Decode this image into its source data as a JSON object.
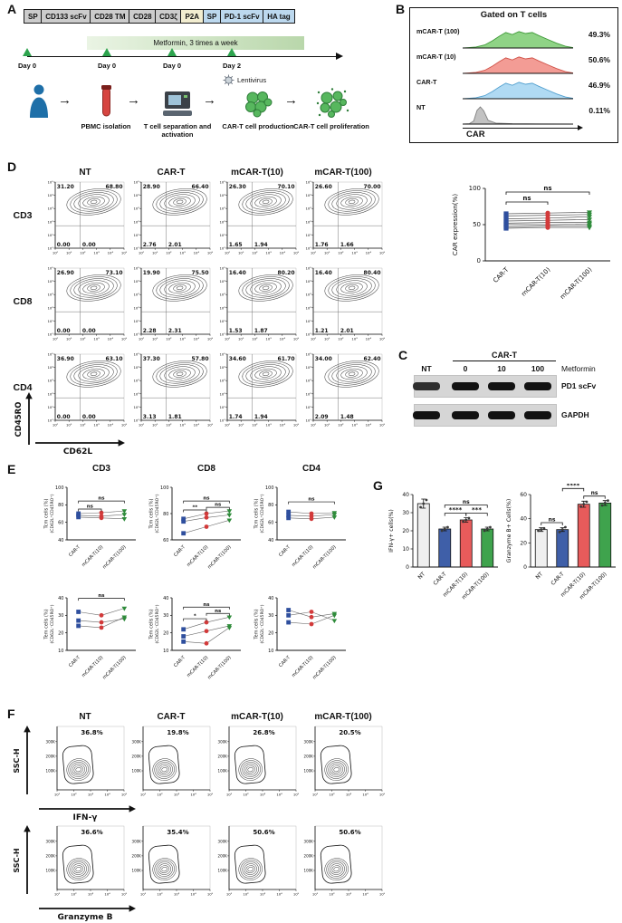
{
  "icons": {
    "flow_arrow": "→"
  },
  "panelA": {
    "label": "A",
    "construct": [
      {
        "text": "SP",
        "bg": "#cccccc"
      },
      {
        "text": "CD133 scFv",
        "bg": "#cccccc"
      },
      {
        "text": "CD28 TM",
        "bg": "#cccccc"
      },
      {
        "text": "CD28",
        "bg": "#cccccc"
      },
      {
        "text": "CD3ζ",
        "bg": "#cccccc"
      },
      {
        "text": "P2A",
        "bg": "#f2edd0"
      },
      {
        "text": "SP",
        "bg": "#bcd8ee"
      },
      {
        "text": "PD-1 scFv",
        "bg": "#bcd8ee"
      },
      {
        "text": "HA tag",
        "bg": "#bcd8ee"
      }
    ],
    "metformin_banner": "Metformin, 3 times a week",
    "timeline_days": [
      "Day 0",
      "Day 0",
      "Day 0",
      "Day 2"
    ],
    "lentivirus_label": "Lentivirus",
    "steps": [
      "PBMC isolation",
      "T cell separation and activation",
      "CAR-T cell production",
      "CAR-T cell proliferation"
    ]
  },
  "panelB": {
    "label": "B",
    "title": "Gated on T cells",
    "xlabel": "CAR",
    "histograms": [
      {
        "name": "mCAR-T (100)",
        "pct": "49.3%",
        "fill": "#86cf7c",
        "stroke": "#3f9a38",
        "shape": "broad"
      },
      {
        "name": "mCAR-T (10)",
        "pct": "50.6%",
        "fill": "#f2948c",
        "stroke": "#d05248",
        "shape": "broad"
      },
      {
        "name": "CAR-T",
        "pct": "46.9%",
        "fill": "#a9d7f2",
        "stroke": "#53a0cf",
        "shape": "broad"
      },
      {
        "name": "NT",
        "pct": "0.11%",
        "fill": "#bdbdbd",
        "stroke": "#7f7f7f",
        "shape": "narrow"
      }
    ],
    "scatter": {
      "ylabel": "CAR expression(%)",
      "ylim": [
        0,
        100
      ],
      "yticks": [
        0,
        50,
        100
      ],
      "categories": [
        "CAR-T",
        "mCAR-T(10)",
        "mCAR-T(100)"
      ],
      "donors": [
        [
          65,
          66,
          67
        ],
        [
          62,
          63,
          64
        ],
        [
          58,
          59,
          61
        ],
        [
          55,
          56,
          57
        ],
        [
          52,
          53,
          53
        ],
        [
          50,
          50,
          51
        ],
        [
          47,
          48,
          48
        ],
        [
          45,
          46,
          46
        ]
      ],
      "marker_colors": [
        "#2f4f9e",
        "#d23a3a",
        "#2e8b3a"
      ],
      "sig": [
        {
          "a": 0,
          "b": 1,
          "label": "ns",
          "level": 0
        },
        {
          "a": 0,
          "b": 2,
          "label": "ns",
          "level": 1
        }
      ]
    }
  },
  "panelC": {
    "label": "C",
    "group_label": "CAR-T",
    "lanes": [
      "NT",
      "0",
      "10",
      "100"
    ],
    "metformin_label": "Metformin",
    "blots": [
      {
        "label": "PD1 scFv",
        "bands": [
          0.85,
          1,
          1,
          1
        ]
      },
      {
        "label": "GAPDH",
        "bands": [
          1,
          1,
          1,
          1
        ]
      }
    ]
  },
  "panelD": {
    "label": "D",
    "columns": [
      "NT",
      "CAR-T",
      "mCAR-T(10)",
      "mCAR-T(100)"
    ],
    "rows": [
      "CD3",
      "CD8",
      "CD4"
    ],
    "ylabel": "CD45RO",
    "xlabel": "CD62L",
    "log_ticks": [
      "10⁰",
      "10¹",
      "10²",
      "10³",
      "10⁴",
      "10⁵"
    ],
    "quadrants": [
      [
        [
          "31.20",
          "68.80",
          "0.00",
          "0.00"
        ],
        [
          "28.90",
          "66.40",
          "2.76",
          "2.01"
        ],
        [
          "26.30",
          "70.10",
          "1.65",
          "1.94"
        ],
        [
          "26.60",
          "70.00",
          "1.76",
          "1.66"
        ]
      ],
      [
        [
          "26.90",
          "73.10",
          "0.00",
          "0.00"
        ],
        [
          "19.90",
          "75.50",
          "2.28",
          "2.31"
        ],
        [
          "16.40",
          "80.20",
          "1.53",
          "1.87"
        ],
        [
          "16.40",
          "80.40",
          "1.21",
          "2.01"
        ]
      ],
      [
        [
          "36.90",
          "63.10",
          "0.00",
          "0.00"
        ],
        [
          "37.30",
          "57.80",
          "3.13",
          "1.81"
        ],
        [
          "34.60",
          "61.70",
          "1.74",
          "1.94"
        ],
        [
          "34.00",
          "62.40",
          "2.09",
          "1.48"
        ]
      ]
    ]
  },
  "panelE": {
    "label": "E",
    "col_titles": [
      "CD3",
      "CD8",
      "CD4"
    ],
    "categories": [
      "CAR-T",
      "mCAR-T(10)",
      "mCAR-T(100)"
    ],
    "marker_colors": [
      "#2f4f9e",
      "#d23a3a",
      "#2e8b3a"
    ],
    "plots": [
      {
        "ylabel1": "Tcm cells (%)",
        "ylabel2": "(CD62L⁺CD45RO⁺)",
        "ylim": [
          40,
          100
        ],
        "yticks": [
          40,
          60,
          80,
          100
        ],
        "donors": [
          [
            70,
            71,
            73
          ],
          [
            68,
            67,
            69
          ],
          [
            66,
            65,
            64
          ]
        ],
        "sig": [
          {
            "a": 0,
            "b": 1,
            "label": "ns",
            "level": 0
          },
          {
            "a": 0,
            "b": 2,
            "label": "ns",
            "level": 1
          }
        ]
      },
      {
        "ylabel1": "Tcm cells (%)",
        "ylabel2": "(CD62L⁺CD45RO⁺)",
        "ylim": [
          60,
          100
        ],
        "yticks": [
          60,
          80,
          100
        ],
        "donors": [
          [
            76,
            80,
            82
          ],
          [
            74,
            77,
            79
          ],
          [
            65,
            70,
            75
          ]
        ],
        "sig": [
          {
            "a": 0,
            "b": 1,
            "label": "**",
            "level": 0
          },
          {
            "a": 1,
            "b": 2,
            "label": "ns",
            "level": 0
          },
          {
            "a": 0,
            "b": 2,
            "label": "ns",
            "level": 1
          }
        ]
      },
      {
        "ylabel1": "Tcm cells (%)",
        "ylabel2": "(CD62L⁺CD45RO⁺)",
        "ylim": [
          40,
          100
        ],
        "yticks": [
          40,
          60,
          80,
          100
        ],
        "donors": [
          [
            68,
            67,
            69
          ],
          [
            65,
            64,
            66
          ],
          [
            72,
            70,
            71
          ]
        ],
        "sig": [
          {
            "a": 0,
            "b": 2,
            "label": "ns",
            "level": 1
          }
        ]
      },
      {
        "ylabel1": "Tem cells (%)",
        "ylabel2": "(CD62L⁻CD45RO⁺)",
        "ylim": [
          10,
          40
        ],
        "yticks": [
          10,
          20,
          30,
          40
        ],
        "donors": [
          [
            32,
            30,
            34
          ],
          [
            27,
            26,
            28
          ],
          [
            24,
            23,
            29
          ]
        ],
        "sig": [
          {
            "a": 0,
            "b": 2,
            "label": "ns",
            "level": 1
          }
        ]
      },
      {
        "ylabel1": "Tem cells (%)",
        "ylabel2": "(CD62L⁻CD45RO⁺)",
        "ylim": [
          10,
          40
        ],
        "yticks": [
          10,
          20,
          30,
          40
        ],
        "donors": [
          [
            22,
            26,
            29
          ],
          [
            18,
            21,
            24
          ],
          [
            15,
            14,
            23
          ]
        ],
        "sig": [
          {
            "a": 0,
            "b": 1,
            "label": "*",
            "level": 0
          },
          {
            "a": 1,
            "b": 2,
            "label": "ns",
            "level": 0
          },
          {
            "a": 0,
            "b": 2,
            "label": "ns",
            "level": 1
          }
        ]
      },
      {
        "ylabel1": "Tem cells (%)",
        "ylabel2": "(CD62L⁻CD45RO⁺)",
        "ylim": [
          10,
          40
        ],
        "yticks": [
          10,
          20,
          30,
          40
        ],
        "donors": [
          [
            33,
            29,
            31
          ],
          [
            30,
            32,
            27
          ],
          [
            26,
            25,
            30
          ]
        ],
        "sig": []
      }
    ]
  },
  "panelF": {
    "label": "F",
    "columns": [
      "NT",
      "CAR-T",
      "mCAR-T(10)",
      "mCAR-T(100)"
    ],
    "ylabel": "SSC-H",
    "yticks": [
      "100K",
      "200K",
      "300K"
    ],
    "xticks": [
      "10¹",
      "10²",
      "10³",
      "10⁴",
      "10⁵"
    ],
    "rows": [
      {
        "xlabel": "IFN-γ",
        "pcts": [
          "36.8%",
          "19.8%",
          "26.8%",
          "20.5%"
        ]
      },
      {
        "xlabel": "Granzyme B",
        "pcts": [
          "36.6%",
          "35.4%",
          "50.6%",
          "50.6%"
        ]
      }
    ]
  },
  "panelG": {
    "label": "G",
    "bar_colors": [
      "#efefef",
      "#3f5fa8",
      "#e85b5b",
      "#3fa34d"
    ],
    "categories": [
      "NT",
      "CAR-T",
      "mCAR-T(10)",
      "mCAR-T(100)"
    ],
    "charts": [
      {
        "ylabel": "IFN-γ+ cells(%)",
        "ylim": [
          0,
          40
        ],
        "yticks": [
          0,
          10,
          20,
          30,
          40
        ],
        "values": [
          35,
          21,
          26,
          21
        ],
        "errors": [
          2.5,
          1,
          1.2,
          1
        ],
        "points": [
          [
            33,
            35,
            37
          ],
          [
            20,
            21,
            22
          ],
          [
            25,
            26,
            27
          ],
          [
            20,
            21,
            22
          ]
        ],
        "sig": [
          {
            "a": 1,
            "b": 2,
            "label": "****",
            "level": 0
          },
          {
            "a": 2,
            "b": 3,
            "label": "***",
            "level": 0
          },
          {
            "a": 1,
            "b": 3,
            "label": "ns",
            "level": 1
          }
        ]
      },
      {
        "ylabel": "Granzyme B+ Cells(%)",
        "ylim": [
          0,
          60
        ],
        "yticks": [
          0,
          20,
          40,
          60
        ],
        "values": [
          31,
          31,
          52,
          53
        ],
        "errors": [
          1.5,
          1.5,
          2.5,
          2
        ],
        "points": [
          [
            30,
            31,
            32
          ],
          [
            29,
            31,
            33
          ],
          [
            50,
            52,
            54
          ],
          [
            51,
            53,
            55
          ]
        ],
        "sig": [
          {
            "a": 0,
            "b": 1,
            "label": "ns",
            "level": 0
          },
          {
            "a": 2,
            "b": 3,
            "label": "ns",
            "level": 0
          },
          {
            "a": 1,
            "b": 2,
            "label": "****",
            "level": 1
          }
        ]
      }
    ]
  }
}
